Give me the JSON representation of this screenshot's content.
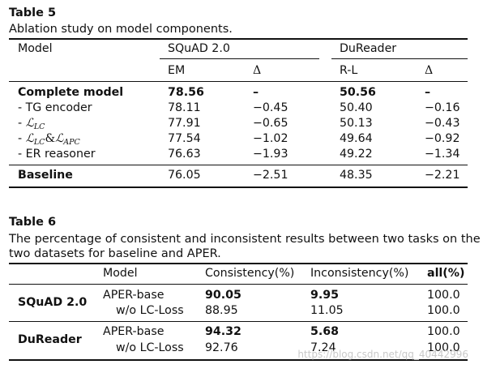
{
  "table5": {
    "label": "Table 5",
    "caption": "Ablation study on model components.",
    "header": {
      "model": "Model",
      "group1": "SQuAD 2.0",
      "group2": "DuReader",
      "em": "EM",
      "delta": "Δ",
      "rl": "R-L"
    },
    "rows": [
      {
        "name": "Complete model",
        "em": "78.56",
        "d1": "–",
        "rl": "50.56",
        "d2": "–",
        "bold": true
      },
      {
        "name": "- TG encoder",
        "em": "78.11",
        "d1": "−0.45",
        "rl": "50.40",
        "d2": "−0.16"
      },
      {
        "name_prefix": "- ",
        "name_math": "ℒ",
        "name_sub": "LC",
        "em": "77.91",
        "d1": "−0.65",
        "rl": "50.13",
        "d2": "−0.43"
      },
      {
        "name_prefix": "- ",
        "name_math": "ℒ",
        "name_sub": "LC",
        "name_amp": "&",
        "name_math2": "ℒ",
        "name_sub2": "APC",
        "em": "77.54",
        "d1": "−1.02",
        "rl": "49.64",
        "d2": "−0.92"
      },
      {
        "name": "- ER reasoner",
        "em": "76.63",
        "d1": "−1.93",
        "rl": "49.22",
        "d2": "−1.34"
      }
    ],
    "baseline": {
      "name": "Baseline",
      "em": "76.05",
      "d1": "−2.51",
      "rl": "48.35",
      "d2": "−2.21"
    }
  },
  "table6": {
    "label": "Table 6",
    "caption_line1": "The percentage of consistent and inconsistent results between two tasks on the",
    "caption_line2": "two datasets for baseline and APER.",
    "header": {
      "model": "Model",
      "consistency": "Consistency(%)",
      "inconsistency": "Inconsistency(%)",
      "all": "all(%)"
    },
    "groups": [
      {
        "dataset": "SQuAD 2.0",
        "rows": [
          {
            "model": "APER-base",
            "consistency": "90.05",
            "inconsistency": "9.95",
            "all": "100.0"
          },
          {
            "model": "w/o LC-Loss",
            "consistency": "88.95",
            "inconsistency": "11.05",
            "all": "100.0"
          }
        ]
      },
      {
        "dataset": "DuReader",
        "rows": [
          {
            "model": "APER-base",
            "consistency": "94.32",
            "inconsistency": "5.68",
            "all": "100.0"
          },
          {
            "model": "w/o LC-Loss",
            "consistency": "92.76",
            "inconsistency": "7.24",
            "all": "100.0"
          }
        ]
      }
    ]
  },
  "watermark": "https://blog.csdn.net/qq_40442996"
}
